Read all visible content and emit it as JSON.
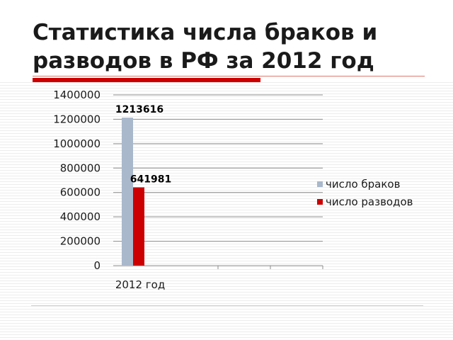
{
  "slide": {
    "title": "Статистика числа браков и разводов в РФ за 2012 год"
  },
  "chart_data": {
    "type": "bar",
    "categories": [
      "2012 год"
    ],
    "series": [
      {
        "name": "число браков",
        "values": [
          1213616
        ],
        "color": "#a9b8cb"
      },
      {
        "name": "число разводов",
        "values": [
          641981
        ],
        "color": "#cc0000"
      }
    ],
    "ylim": [
      0,
      1400000
    ],
    "yticks": [
      0,
      200000,
      400000,
      600000,
      800000,
      1000000,
      1200000,
      1400000
    ],
    "data_labels": [
      "1213616",
      "641981"
    ],
    "grid": true,
    "legend_position": "right"
  }
}
